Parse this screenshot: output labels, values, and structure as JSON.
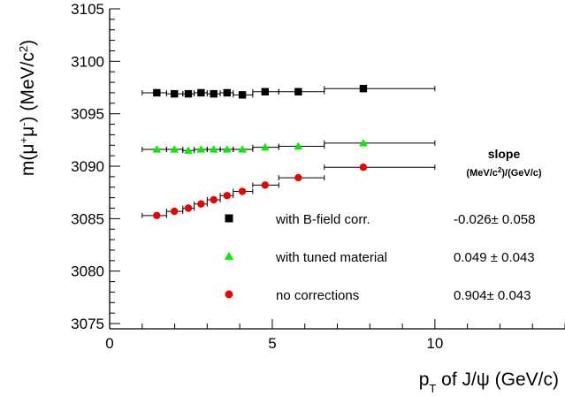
{
  "chart_data": {
    "type": "scatter",
    "xlabel": "pT of J/ψ (GeV/c)",
    "xlabel_parts": {
      "p": "p",
      "sub": "T",
      "rest": " of J/ψ (GeV/c)"
    },
    "ylabel": "m(μ+μ-) (MeV/c2)",
    "ylabel_parts": {
      "main": "m(μ",
      "sup1": "+",
      "mid": "μ",
      "sup2": "-",
      "end": ") (MeV/c",
      "sup3": "2",
      "close": ")"
    },
    "xlim": [
      0,
      14
    ],
    "ylim": [
      3074.5,
      3105
    ],
    "x_ticks": [
      0,
      5,
      10
    ],
    "y_ticks": [
      3075,
      3080,
      3085,
      3090,
      3095,
      3100,
      3105
    ],
    "x_bins": [
      [
        1,
        1.75
      ],
      [
        1.75,
        2.25
      ],
      [
        2.25,
        2.6
      ],
      [
        2.6,
        3.0
      ],
      [
        3.0,
        3.4
      ],
      [
        3.4,
        3.8
      ],
      [
        3.8,
        4.4
      ],
      [
        4.4,
        5.2
      ],
      [
        5.2,
        6.6
      ],
      [
        6.6,
        10
      ]
    ],
    "x_centers": [
      1.45,
      1.99,
      2.42,
      2.81,
      3.2,
      3.61,
      4.08,
      4.78,
      5.8,
      7.8
    ],
    "series": [
      {
        "name": "with B-field corr.",
        "marker": "square",
        "color": "#000000",
        "y": [
          3097.0,
          3096.9,
          3096.9,
          3097.0,
          3096.9,
          3097.0,
          3096.8,
          3097.1,
          3097.1,
          3097.4
        ],
        "slope": "-0.026± 0.058"
      },
      {
        "name": "with tuned material",
        "marker": "triangle",
        "color": "#00ee00",
        "y": [
          3091.6,
          3091.6,
          3091.5,
          3091.6,
          3091.6,
          3091.6,
          3091.6,
          3091.8,
          3091.9,
          3092.2
        ],
        "slope": "0.049 ± 0.043"
      },
      {
        "name": "no corrections",
        "marker": "circle",
        "color": "#ee0000",
        "y": [
          3085.3,
          3085.7,
          3086.0,
          3086.4,
          3086.8,
          3087.2,
          3087.6,
          3088.2,
          3088.9,
          3089.9
        ],
        "slope": "0.904± 0.043"
      }
    ],
    "legend_title": "slope",
    "legend_units_parts": {
      "a": "(MeV/c",
      "sup": "2",
      "b": ")/(GeV/c)"
    },
    "legend_units": "(MeV/c2)/(GeV/c)",
    "grid": false,
    "legend_position": "bottom-right"
  }
}
